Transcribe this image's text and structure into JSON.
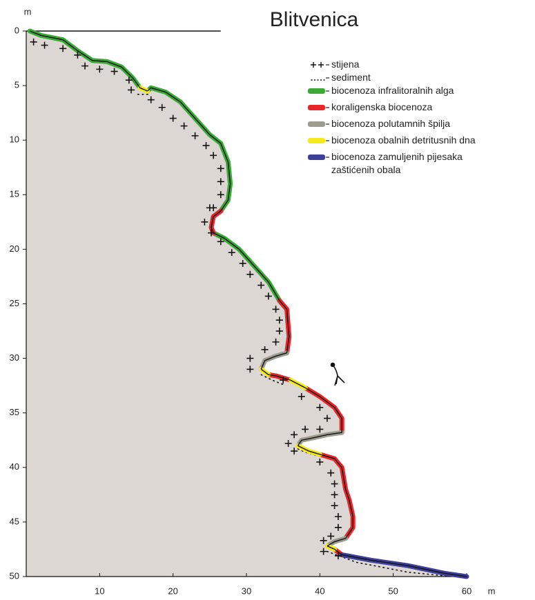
{
  "chart_data": {
    "type": "line",
    "title": "Blitvenica",
    "x_label": "m",
    "y_label": "m",
    "xlim": [
      0,
      60
    ],
    "ylim": [
      0,
      50
    ],
    "y_reversed": true,
    "xticks": [
      10,
      20,
      30,
      40,
      50,
      60
    ],
    "yticks": [
      0,
      5,
      10,
      15,
      20,
      25,
      30,
      35,
      40,
      45,
      50
    ],
    "fill_color": "#ddd7d3",
    "rock": {
      "name": "stijena",
      "color": "#111111",
      "x": [
        1,
        2.5,
        5,
        7,
        8,
        10,
        12,
        14,
        14.3,
        17,
        18.5,
        20,
        21.5,
        23,
        24.5,
        25.5,
        26.5,
        26.5,
        26.5,
        25.5,
        25,
        24.3,
        25.2,
        26.5,
        28,
        29.5,
        30.5,
        32,
        33,
        34,
        34.5,
        34.5,
        34,
        32.5,
        30.5,
        30.5,
        35,
        37.5,
        40,
        41,
        40,
        38,
        36.5,
        35.7,
        36.5,
        40,
        41.5,
        42,
        42,
        42,
        42.5,
        42.5,
        41.5,
        40.5,
        40.5,
        42.5
      ],
      "y": [
        1,
        1.3,
        1.6,
        2.2,
        3.2,
        3.5,
        3.7,
        4.5,
        5.4,
        6.3,
        7,
        8,
        8.7,
        9.6,
        10.5,
        11.4,
        12.6,
        13.8,
        15,
        16.2,
        16.2,
        17.5,
        18.5,
        19.3,
        20.3,
        21.3,
        22.3,
        23.3,
        24.3,
        25.5,
        26.5,
        27.5,
        28.5,
        29.2,
        30,
        31,
        32,
        33.5,
        34.5,
        35.5,
        36.5,
        36.5,
        37,
        37.8,
        38.5,
        39.5,
        40.5,
        41.5,
        42.5,
        43.5,
        44.5,
        45.5,
        46.3,
        46.7,
        47.7,
        48.1
      ]
    },
    "sediment": {
      "name": "sediment",
      "color": "#111111",
      "x": [
        15.2,
        16.8,
        null,
        32,
        33.5,
        35,
        null,
        37,
        38,
        39.5,
        null,
        41,
        45,
        52,
        58
      ],
      "y": [
        5.8,
        5.8,
        null,
        31.5,
        32,
        32.4,
        null,
        38.3,
        38.6,
        38.9,
        null,
        47.7,
        48.7,
        49.6,
        50
      ]
    },
    "series": [
      {
        "name": "biocenoza infralitoralnih alga",
        "color": "#3aa935",
        "x": [
          0.5,
          2,
          5,
          7,
          9,
          11,
          13,
          14.5,
          15.5,
          null,
          16.5,
          17,
          19,
          21,
          23,
          25,
          26.5,
          27.5,
          27.8,
          27.5,
          26.5,
          null,
          25.5,
          27,
          29,
          31,
          33,
          34.5
        ],
        "y": [
          0,
          0.4,
          0.8,
          1.8,
          2.7,
          2.8,
          3.3,
          4.3,
          5.2,
          null,
          5.5,
          5.2,
          5.6,
          6.5,
          8,
          9.5,
          10.3,
          12,
          14,
          15.5,
          16.5,
          null,
          18.5,
          19,
          20,
          21.5,
          23,
          24.7
        ]
      },
      {
        "name": "koraligenska biocenoza",
        "color": "#e5262a",
        "x": [
          26.5,
          25.5,
          25.2,
          25.5,
          null,
          34.5,
          35.5,
          35.8,
          35.5,
          null,
          33,
          34,
          36,
          null,
          38,
          40,
          42,
          43,
          43,
          null,
          40,
          42,
          43,
          43.5,
          44,
          44.5,
          44.5,
          43.5,
          null,
          42,
          43
        ],
        "y": [
          16.5,
          17,
          18,
          18.5,
          null,
          24.7,
          25.5,
          28,
          29.5,
          null,
          31.5,
          31.6,
          32,
          null,
          32.7,
          33.5,
          34.5,
          35.5,
          36.8,
          null,
          38.8,
          39.2,
          40,
          42,
          43,
          44.5,
          45.5,
          46.5,
          null,
          47.5,
          48
        ]
      },
      {
        "name": "biocenoza polutamnih špilja",
        "color": "#9c9c90",
        "x": [
          35.5,
          34,
          32.5,
          32,
          null,
          43,
          41,
          39,
          37.5,
          37,
          null,
          43.5,
          42,
          41
        ],
        "y": [
          29.5,
          29.8,
          30.2,
          31,
          null,
          36.8,
          37,
          37.3,
          37.5,
          38,
          null,
          46.5,
          46.8,
          47.2
        ]
      },
      {
        "name": "biocenoza obalnih detritusnih dna",
        "color": "#f3e91d",
        "x": [
          15.5,
          16.5,
          null,
          32,
          33,
          null,
          36,
          38,
          null,
          37,
          38.5,
          40,
          null,
          41,
          42
        ],
        "y": [
          5.2,
          5.5,
          null,
          31,
          31.5,
          null,
          32,
          32.7,
          null,
          38,
          38.5,
          38.8,
          null,
          47.2,
          47.5
        ]
      },
      {
        "name": "biocenoza zamuljenih pijesaka zaštićenih obala",
        "color": "#3e3f98",
        "x": [
          43,
          47,
          52,
          57,
          60
        ],
        "y": [
          48,
          48.5,
          49,
          49.7,
          50
        ]
      }
    ]
  }
}
